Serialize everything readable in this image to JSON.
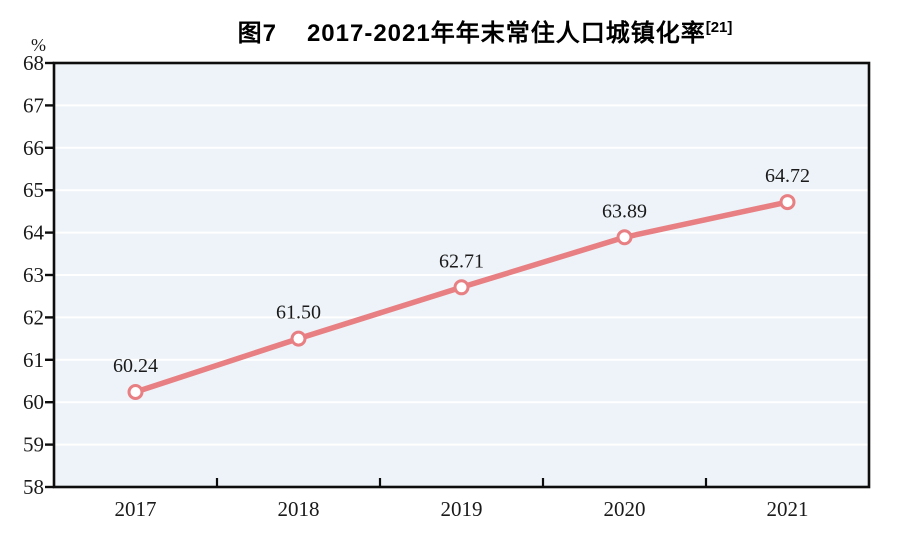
{
  "title": {
    "figure_label": "图7",
    "text": "2017-2021年年末常住人口城镇化率",
    "superscript": "[21]"
  },
  "unit_label": "%",
  "chart_data": {
    "type": "line",
    "title": "图7 2017-2021年年末常住人口城镇化率[21]",
    "categories": [
      "2017",
      "2018",
      "2019",
      "2020",
      "2021"
    ],
    "values": [
      60.24,
      61.5,
      62.71,
      63.89,
      64.72
    ],
    "data_labels": [
      "60.24",
      "61.50",
      "62.71",
      "63.89",
      "64.72"
    ],
    "xlabel": "",
    "ylabel": "%",
    "ylim": [
      58,
      68
    ],
    "y_ticks": [
      58,
      59,
      60,
      61,
      62,
      63,
      64,
      65,
      66,
      67,
      68
    ],
    "grid": true,
    "legend": false,
    "colors": {
      "line": "#e87f83",
      "marker_fill": "#ffffff",
      "marker_stroke": "#e87f83",
      "plot_bg": "#edf3f8",
      "gridline": "#ffffff",
      "axis": "#0d0d0d",
      "text": "#1a1a1a"
    }
  }
}
